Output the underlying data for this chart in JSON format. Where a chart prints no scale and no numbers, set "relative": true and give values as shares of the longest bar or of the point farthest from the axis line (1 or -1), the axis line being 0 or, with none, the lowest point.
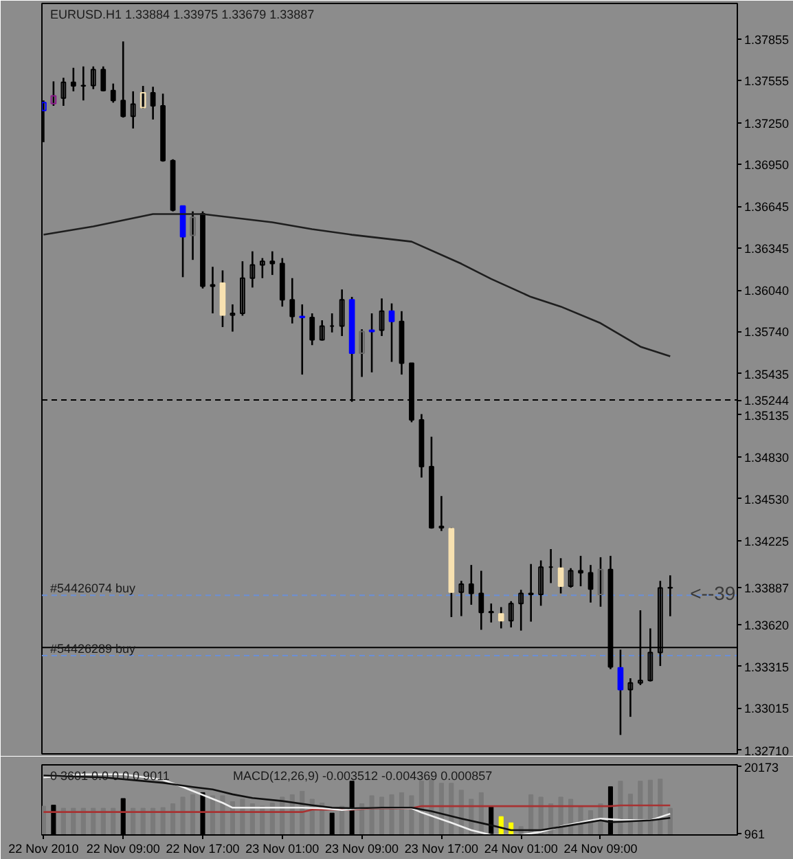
{
  "chart_data": [
    {
      "type": "candlestick",
      "title": "EURUSD.H1 1.33884 1.33975 1.33679 1.33887",
      "x": [
        "2010-11-22T01:00",
        "2010-11-22T02:00",
        "2010-11-22T03:00",
        "2010-11-22T04:00",
        "2010-11-22T05:00",
        "2010-11-22T06:00",
        "2010-11-22T07:00",
        "2010-11-22T08:00",
        "2010-11-22T09:00",
        "2010-11-22T10:00",
        "2010-11-22T11:00",
        "2010-11-22T12:00",
        "2010-11-22T13:00",
        "2010-11-22T14:00",
        "2010-11-22T15:00",
        "2010-11-22T16:00",
        "2010-11-22T17:00",
        "2010-11-22T18:00",
        "2010-11-22T19:00",
        "2010-11-22T20:00",
        "2010-11-22T21:00",
        "2010-11-22T22:00",
        "2010-11-22T23:00",
        "2010-11-23T00:00",
        "2010-11-23T01:00",
        "2010-11-23T02:00",
        "2010-11-23T03:00",
        "2010-11-23T04:00",
        "2010-11-23T05:00",
        "2010-11-23T06:00",
        "2010-11-23T07:00",
        "2010-11-23T08:00",
        "2010-11-23T09:00",
        "2010-11-23T10:00",
        "2010-11-23T11:00",
        "2010-11-23T12:00",
        "2010-11-23T13:00",
        "2010-11-23T14:00",
        "2010-11-23T15:00",
        "2010-11-23T16:00",
        "2010-11-23T17:00",
        "2010-11-23T18:00",
        "2010-11-23T19:00",
        "2010-11-23T20:00",
        "2010-11-23T21:00",
        "2010-11-23T22:00",
        "2010-11-23T23:00",
        "2010-11-24T00:00",
        "2010-11-24T01:00",
        "2010-11-24T02:00",
        "2010-11-24T03:00",
        "2010-11-24T04:00",
        "2010-11-24T05:00",
        "2010-11-24T06:00",
        "2010-11-24T07:00",
        "2010-11-24T08:00",
        "2010-11-24T09:00",
        "2010-11-24T10:00",
        "2010-11-24T11:00",
        "2010-11-24T12:00",
        "2010-11-24T13:00",
        "2010-11-24T14:00",
        "2010-11-24T15:00",
        "2010-11-24T16:00"
      ],
      "ohlc": [
        [
          1.3734,
          1.37412,
          1.3711,
          1.37396
        ],
        [
          1.37389,
          1.3755,
          1.37373,
          1.37445
        ],
        [
          1.37429,
          1.37576,
          1.37373,
          1.37543
        ],
        [
          1.37543,
          1.37648,
          1.37478,
          1.37517
        ],
        [
          1.37517,
          1.37658,
          1.37412,
          1.3752
        ],
        [
          1.3752,
          1.37658,
          1.37494,
          1.37635
        ],
        [
          1.37635,
          1.37658,
          1.37478,
          1.37484
        ],
        [
          1.37484,
          1.37534,
          1.37396,
          1.37412
        ],
        [
          1.37412,
          1.37839,
          1.37288,
          1.37297
        ],
        [
          1.37297,
          1.37478,
          1.37209,
          1.37386
        ],
        [
          1.3736,
          1.37517,
          1.37353,
          1.37468
        ],
        [
          1.37468,
          1.37511,
          1.37274,
          1.37373
        ],
        [
          1.37373,
          1.37461,
          1.36969,
          1.36976
        ],
        [
          1.36976,
          1.36986,
          1.36609,
          1.36618
        ],
        [
          1.36648,
          1.36648,
          1.36133,
          1.36425
        ],
        [
          1.36435,
          1.36609,
          1.36258,
          1.36566
        ],
        [
          1.36592,
          1.36609,
          1.36051,
          1.36067
        ],
        [
          1.36067,
          1.36208,
          1.35871,
          1.36077
        ],
        [
          1.3609,
          1.36182,
          1.35772,
          1.35858
        ],
        [
          1.35858,
          1.35936,
          1.35739,
          1.35871
        ],
        [
          1.35871,
          1.36248,
          1.35854,
          1.36126
        ],
        [
          1.36126,
          1.3632,
          1.36058,
          1.36222
        ],
        [
          1.36222,
          1.36271,
          1.36126,
          1.36248
        ],
        [
          1.36248,
          1.3632,
          1.36149,
          1.36231
        ],
        [
          1.36231,
          1.36271,
          1.3592,
          1.35969
        ],
        [
          1.35969,
          1.36126,
          1.35798,
          1.35848
        ],
        [
          1.35848,
          1.35936,
          1.35428,
          1.35841
        ],
        [
          1.35841,
          1.35871,
          1.35641,
          1.3568
        ],
        [
          1.3568,
          1.35821,
          1.35674,
          1.35779
        ],
        [
          1.35779,
          1.35871,
          1.35733,
          1.35779
        ],
        [
          1.35779,
          1.36044,
          1.35707,
          1.35969
        ],
        [
          1.35969,
          1.3599,
          1.35231,
          1.35582
        ],
        [
          1.35582,
          1.35756,
          1.35411,
          1.35739
        ],
        [
          1.35739,
          1.35871,
          1.35444,
          1.35749
        ],
        [
          1.35749,
          1.35979,
          1.35707,
          1.35887
        ],
        [
          1.35887,
          1.35943,
          1.3552,
          1.35812
        ],
        [
          1.35812,
          1.35887,
          1.35428,
          1.3551
        ],
        [
          1.3551,
          1.3551,
          1.35083,
          1.351
        ],
        [
          1.351,
          1.35142,
          1.34683,
          1.34762
        ],
        [
          1.34762,
          1.34978,
          1.34313,
          1.34319
        ],
        [
          1.34319,
          1.34549,
          1.34296,
          1.34329
        ],
        [
          1.34313,
          1.3432,
          1.33673,
          1.33853
        ],
        [
          1.33853,
          1.33935,
          1.3368,
          1.33912
        ],
        [
          1.33912,
          1.3405,
          1.33762,
          1.33844
        ],
        [
          1.33844,
          1.34008,
          1.33581,
          1.33706
        ],
        [
          1.33706,
          1.33771,
          1.33634,
          1.33712
        ],
        [
          1.33696,
          1.33745,
          1.33591,
          1.33647
        ],
        [
          1.33647,
          1.33788,
          1.33598,
          1.33771
        ],
        [
          1.33771,
          1.3387,
          1.33575,
          1.33844
        ],
        [
          1.33844,
          1.34057,
          1.3364,
          1.33837
        ],
        [
          1.33837,
          1.34083,
          1.33755,
          1.34034
        ],
        [
          1.34034,
          1.34165,
          1.33919,
          1.34034
        ],
        [
          1.34027,
          1.34099,
          1.33844,
          1.33896
        ],
        [
          1.33896,
          1.34027,
          1.33886,
          1.34008
        ],
        [
          1.34008,
          1.34116,
          1.33896,
          1.33994
        ],
        [
          1.33994,
          1.3405,
          1.33778,
          1.33876
        ],
        [
          1.33837,
          1.34106,
          1.33748,
          1.34017
        ],
        [
          1.34017,
          1.34116,
          1.33296,
          1.33312
        ],
        [
          1.33306,
          1.33437,
          1.3282,
          1.33148
        ],
        [
          1.33148,
          1.3323,
          1.32951,
          1.33197
        ],
        [
          1.33197,
          1.33722,
          1.33181,
          1.33214
        ],
        [
          1.33214,
          1.33591,
          1.33207,
          1.33417
        ],
        [
          1.33417,
          1.33935,
          1.33319,
          1.33884
        ],
        [
          1.33884,
          1.33975,
          1.33679,
          1.33887
        ]
      ],
      "color": "#000000",
      "colors": [
        "#0000ff",
        "#8b1a8b",
        null,
        null,
        null,
        null,
        null,
        null,
        null,
        null,
        "#f7e1b0",
        null,
        null,
        null,
        "#0000ff",
        "#6a6a6a",
        null,
        null,
        "#f7e1b0",
        null,
        null,
        null,
        null,
        null,
        null,
        null,
        "#0000ff",
        null,
        null,
        null,
        null,
        "#0000ff",
        "#6a6a6a",
        "#0000ff",
        null,
        "#0000ff",
        null,
        null,
        null,
        null,
        null,
        "#f7e1b0",
        null,
        null,
        null,
        null,
        "#f7e1b0",
        null,
        null,
        null,
        null,
        null,
        "#f7e1b0",
        null,
        null,
        null,
        "#6a6a6a",
        null,
        "#0000ff",
        null,
        null,
        null,
        null,
        null
      ],
      "series": [
        {
          "type": "line",
          "color": "#1e1e1e",
          "x": [
            "2010-11-22T01:00",
            "2010-11-22T06:00",
            "2010-11-22T12:00",
            "2010-11-22T17:00",
            "2010-11-23T00:00",
            "2010-11-23T04:00",
            "2010-11-23T08:00",
            "2010-11-23T14:00",
            "2010-11-23T19:00",
            "2010-11-23T22:00",
            "2010-11-24T02:00",
            "2010-11-24T05:00",
            "2010-11-24T09:00",
            "2010-11-24T13:00",
            "2010-11-24T16:00"
          ],
          "values": [
            1.3644,
            1.365,
            1.3659,
            1.3659,
            1.3653,
            1.3648,
            1.3644,
            1.3639,
            1.3623,
            1.3612,
            1.3599,
            1.3592,
            1.358,
            1.3563,
            1.3556
          ]
        }
      ],
      "xlim": [
        "2010-11-22T00:50",
        "2010-11-24T22:45"
      ],
      "ylim": [
        1.32683,
        1.38114
      ],
      "yticks": [
        1.37855,
        1.37555,
        {
          "value": 1.3725,
          "label": "1.37250"
        },
        {
          "value": 1.3695,
          "label": "1.36950"
        },
        1.36645,
        1.36345,
        {
          "value": 1.3604,
          "label": "1.36040"
        },
        {
          "value": 1.3574,
          "label": "1.35740"
        },
        1.35435,
        1.35244,
        1.35135,
        {
          "value": 1.3483,
          "label": "1.34830"
        },
        {
          "value": 1.3453,
          "label": "1.34530"
        },
        1.34225,
        1.33887,
        {
          "value": 1.3362,
          "label": "1.33620"
        },
        1.33315,
        1.33015,
        {
          "value": 1.3271,
          "label": "1.32710"
        }
      ],
      "tick_labels": "y",
      "ref_lines": [
        {
          "axis": "y",
          "value": 1.35244,
          "color": "#000000",
          "line_style": "dashed"
        },
        {
          "axis": "y",
          "value": 1.33831,
          "label": "#54426074 buy",
          "color": "#6b8fd6",
          "line_style": "dashed"
        },
        {
          "axis": "y",
          "value": 1.33394,
          "label": "#54426289 buy",
          "color": "#6b8fd6",
          "line_style": "dashed"
        },
        {
          "axis": "y",
          "value": 1.33453,
          "color": "#000000",
          "line_style": "solid"
        }
      ],
      "annotations": [
        {
          "text": "<--39",
          "x": "2010-11-24T18:00",
          "y": 1.33847
        }
      ]
    },
    {
      "type": "bar",
      "title": "0 3601 0.0 0 0 0 9011",
      "x": [
        "2010-11-22T01:00",
        "2010-11-22T02:00",
        "2010-11-22T03:00",
        "2010-11-22T04:00",
        "2010-11-22T05:00",
        "2010-11-22T06:00",
        "2010-11-22T07:00",
        "2010-11-22T08:00",
        "2010-11-22T09:00",
        "2010-11-22T10:00",
        "2010-11-22T11:00",
        "2010-11-22T12:00",
        "2010-11-22T13:00",
        "2010-11-22T14:00",
        "2010-11-22T15:00",
        "2010-11-22T16:00",
        "2010-11-22T17:00",
        "2010-11-22T18:00",
        "2010-11-22T19:00",
        "2010-11-22T20:00",
        "2010-11-22T21:00",
        "2010-11-22T22:00",
        "2010-11-22T23:00",
        "2010-11-23T00:00",
        "2010-11-23T01:00",
        "2010-11-23T02:00",
        "2010-11-23T03:00",
        "2010-11-23T04:00",
        "2010-11-23T05:00",
        "2010-11-23T06:00",
        "2010-11-23T07:00",
        "2010-11-23T08:00",
        "2010-11-23T09:00",
        "2010-11-23T10:00",
        "2010-11-23T11:00",
        "2010-11-23T12:00",
        "2010-11-23T13:00",
        "2010-11-23T14:00",
        "2010-11-23T15:00",
        "2010-11-23T16:00",
        "2010-11-23T17:00",
        "2010-11-23T18:00",
        "2010-11-23T19:00",
        "2010-11-23T20:00",
        "2010-11-23T21:00",
        "2010-11-23T22:00",
        "2010-11-23T23:00",
        "2010-11-24T00:00",
        "2010-11-24T01:00",
        "2010-11-24T02:00",
        "2010-11-24T03:00",
        "2010-11-24T04:00",
        "2010-11-24T05:00",
        "2010-11-24T06:00",
        "2010-11-24T07:00",
        "2010-11-24T08:00",
        "2010-11-24T09:00",
        "2010-11-24T10:00",
        "2010-11-24T11:00",
        "2010-11-24T12:00",
        "2010-11-24T13:00",
        "2010-11-24T14:00",
        "2010-11-24T15:00",
        "2010-11-24T16:00"
      ],
      "series": [
        {
          "type": "bar",
          "values": [
            8800,
            9100,
            8200,
            8200,
            8200,
            8200,
            8200,
            8200,
            11000,
            8200,
            8200,
            8200,
            8400,
            9500,
            11400,
            12100,
            12700,
            11800,
            11800,
            10100,
            10800,
            9500,
            8800,
            9700,
            11400,
            12100,
            13100,
            10800,
            9700,
            6800,
            8800,
            16000,
            9500,
            11800,
            11400,
            12100,
            12700,
            11800,
            16000,
            16600,
            15400,
            15400,
            13400,
            10800,
            12700,
            8600,
            5800,
            4000,
            2900,
            12100,
            11400,
            9500,
            11400,
            10800,
            8800,
            7500,
            9500,
            14400,
            16000,
            12300,
            16000,
            16300,
            16600,
            8200
          ],
          "colors": [
            "#7a7a7a",
            "#000000",
            "#7a7a7a",
            "#7a7a7a",
            "#7a7a7a",
            "#7a7a7a",
            "#7a7a7a",
            "#7a7a7a",
            "#000000",
            "#7a7a7a",
            "#7a7a7a",
            "#7a7a7a",
            "#7a7a7a",
            "#7a7a7a",
            "#7a7a7a",
            "#7a7a7a",
            "#000000",
            "#7a7a7a",
            "#7a7a7a",
            "#7a7a7a",
            "#7a7a7a",
            "#7a7a7a",
            "#7a7a7a",
            "#7a7a7a",
            "#7a7a7a",
            "#7a7a7a",
            "#7a7a7a",
            "#7a7a7a",
            "#7a7a7a",
            "#000000",
            "#7a7a7a",
            "#000000",
            "#7a7a7a",
            "#7a7a7a",
            "#7a7a7a",
            "#7a7a7a",
            "#7a7a7a",
            "#7a7a7a",
            "#7a7a7a",
            "#7a7a7a",
            "#7a7a7a",
            "#7a7a7a",
            "#7a7a7a",
            "#7a7a7a",
            "#7a7a7a",
            "#000000",
            "#ffff00",
            "#ffff00",
            "#7a7a7a",
            "#7a7a7a",
            "#7a7a7a",
            "#7a7a7a",
            "#7a7a7a",
            "#7a7a7a",
            "#7a7a7a",
            "#7a7a7a",
            "#7a7a7a",
            "#000000",
            "#7a7a7a",
            "#7a7a7a",
            "#7a7a7a",
            "#7a7a7a",
            "#7a7a7a",
            "#7a7a7a"
          ]
        },
        {
          "type": "line",
          "color": "#a83232",
          "x": [
            "2010-11-22T01:00",
            "2010-11-23T03:00",
            "2010-11-23T04:00",
            "2010-11-23T08:00",
            "2010-11-23T10:00",
            "2010-11-23T14:00",
            "2010-11-23T15:00",
            "2010-11-24T10:00",
            "2010-11-24T11:00",
            "2010-11-24T16:00"
          ],
          "values": [
            7100,
            7100,
            7800,
            7800,
            8200,
            8200,
            8800,
            8800,
            9011,
            9011
          ]
        }
      ],
      "xlim": [
        "2010-11-22T00:50",
        "2010-11-24T22:45"
      ],
      "ylim": [
        500,
        20700
      ],
      "yticks": [
        961,
        20173
      ],
      "xticks": [
        {
          "value": "2010-11-22T01:00",
          "label": "22 Nov 2010"
        },
        {
          "value": "2010-11-22T09:00",
          "label": "22 Nov 09:00"
        },
        {
          "value": "2010-11-22T17:00",
          "label": "22 Nov 17:00"
        },
        {
          "value": "2010-11-23T01:00",
          "label": "23 Nov 01:00"
        },
        {
          "value": "2010-11-23T09:00",
          "label": "23 Nov 09:00"
        },
        {
          "value": "2010-11-23T17:00",
          "label": "23 Nov 17:00"
        },
        {
          "value": "2010-11-24T01:00",
          "label": "24 Nov 01:00"
        },
        {
          "value": "2010-11-24T09:00",
          "label": "24 Nov 09:00"
        }
      ]
    },
    {
      "type": "line",
      "relative": true,
      "title": "MACD(12,26,9) -0.003512 -0.004369 0.000857",
      "xlim": [
        "2010-11-22T00:50",
        "2010-11-24T22:45"
      ],
      "tick_labels": false,
      "series": [
        {
          "color": "#f0f0f0",
          "x": [
            "2010-11-22T01:00",
            "2010-11-22T05:00",
            "2010-11-22T09:00",
            "2010-11-22T13:00",
            "2010-11-22T15:00",
            "2010-11-22T17:00",
            "2010-11-22T19:00",
            "2010-11-22T20:00",
            "2010-11-22T23:00",
            "2010-11-23T03:00",
            "2010-11-23T05:00",
            "2010-11-23T07:00",
            "2010-11-23T09:00",
            "2010-11-23T11:00",
            "2010-11-23T14:00",
            "2010-11-23T15:00",
            "2010-11-23T18:00",
            "2010-11-23T20:00",
            "2010-11-23T22:00",
            "2010-11-24T01:00",
            "2010-11-24T03:00",
            "2010-11-24T05:00",
            "2010-11-24T08:00",
            "2010-11-24T09:00",
            "2010-11-24T11:00",
            "2010-11-24T14:00",
            "2010-11-24T16:00"
          ],
          "values": [
            0.95,
            1,
            1,
            0.91,
            0.79,
            0.66,
            0.53,
            0.45,
            0.45,
            0.45,
            0.44,
            0.41,
            0.44,
            0.45,
            0.44,
            0.37,
            0.2,
            0.08,
            0,
            0,
            0.05,
            0.14,
            0.24,
            0.27,
            0.25,
            0.24,
            0.35
          ]
        },
        {
          "color": "#101010",
          "x": [
            "2010-11-22T01:00",
            "2010-11-22T07:00",
            "2010-11-22T13:00",
            "2010-11-22T16:00",
            "2010-11-22T18:00",
            "2010-11-22T20:00",
            "2010-11-22T22:00",
            "2010-11-23T01:00",
            "2010-11-23T04:00",
            "2010-11-23T06:00",
            "2010-11-23T08:00",
            "2010-11-23T11:00",
            "2010-11-23T14:00",
            "2010-11-23T16:00",
            "2010-11-23T19:00",
            "2010-11-23T22:00",
            "2010-11-24T00:00",
            "2010-11-24T03:00",
            "2010-11-24T06:00",
            "2010-11-24T09:00",
            "2010-11-24T10:00",
            "2010-11-24T14:00",
            "2010-11-24T16:00"
          ],
          "values": [
            0.98,
            0.95,
            0.86,
            0.79,
            0.75,
            0.67,
            0.61,
            0.56,
            0.49,
            0.45,
            0.44,
            0.45,
            0.45,
            0.39,
            0.27,
            0.16,
            0.08,
            0.08,
            0.16,
            0.24,
            0.21,
            0.24,
            0.28
          ]
        }
      ]
    }
  ]
}
